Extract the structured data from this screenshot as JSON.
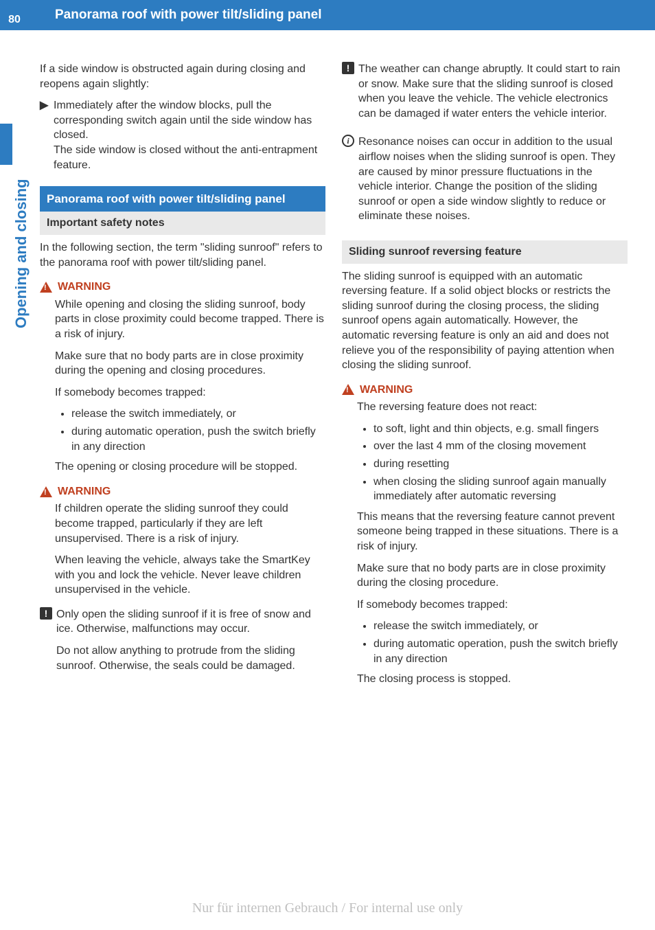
{
  "page_number": "80",
  "header_title": "Panorama roof with power tilt/sliding panel",
  "vertical_label": "Opening and closing",
  "footer": "Nur für internen Gebrauch / For internal use only",
  "colors": {
    "brand": "#2d7cc1",
    "warn": "#c04020",
    "sub_bg": "#e9e9e9",
    "text": "#333333",
    "footer": "#bfbfbf"
  },
  "left": {
    "intro1": "If a side window is obstructed again during closing and reopens again slightly:",
    "bullet1": "Immediately after the window blocks, pull the corresponding switch again until the side window has closed.",
    "bullet1b": "The side window is closed without the anti-entrapment feature.",
    "section_title": "Panorama roof with power tilt/sliding panel",
    "sub_title": "Important safety notes",
    "sub_intro": "In the following section, the term \"sliding sunroof\" refers to the panorama roof with power tilt/sliding panel.",
    "warn_label": "WARNING",
    "warn1_p1": "While opening and closing the sliding sunroof, body parts in close proximity could become trapped. There is a risk of injury.",
    "warn1_p2": "Make sure that no body parts are in close proximity during the opening and closing procedures.",
    "warn1_p3": "If somebody becomes trapped:",
    "warn1_li1": "release the switch immediately, or",
    "warn1_li2": "during automatic operation, push the switch briefly in any direction",
    "warn1_p4": "The opening or closing procedure will be stopped.",
    "warn2_p1": "If children operate the sliding sunroof they could become trapped, particularly if they are left unsupervised. There is a risk of injury.",
    "warn2_p2": "When leaving the vehicle, always take the SmartKey with you and lock the vehicle. Never leave children unsupervised in the vehicle.",
    "excl_p1": "Only open the sliding sunroof if it is free of snow and ice. Otherwise, malfunctions may occur.",
    "excl_p2": "Do not allow anything to protrude from the sliding sunroof. Otherwise, the seals could be damaged."
  },
  "right": {
    "excl_p1": "The weather can change abruptly. It could start to rain or snow. Make sure that the sliding sunroof is closed when you leave the vehicle. The vehicle electronics can be damaged if water enters the vehicle interior.",
    "info_p1": "Resonance noises can occur in addition to the usual airflow noises when the sliding sunroof is open. They are caused by minor pressure fluctuations in the vehicle interior. Change the position of the sliding sunroof or open a side window slightly to reduce or eliminate these noises.",
    "sub_title": "Sliding sunroof reversing feature",
    "sub_p1": "The sliding sunroof is equipped with an automatic reversing feature. If a solid object blocks or restricts the sliding sunroof during the closing process, the sliding sunroof opens again automatically. However, the automatic reversing feature is only an aid and does not relieve you of the responsibility of paying attention when closing the sliding sunroof.",
    "warn_label": "WARNING",
    "warn_p1": "The reversing feature does not react:",
    "warn_li1": "to soft, light and thin objects, e.g. small fingers",
    "warn_li2": "over the last 4 mm of the closing movement",
    "warn_li3": "during resetting",
    "warn_li4": "when closing the sliding sunroof again manually immediately after automatic reversing",
    "warn_p2": "This means that the reversing feature cannot prevent someone being trapped in these situations. There is a risk of injury.",
    "warn_p3": "Make sure that no body parts are in close proximity during the closing procedure.",
    "warn_p4": "If somebody becomes trapped:",
    "warn_li5": "release the switch immediately, or",
    "warn_li6": "during automatic operation, push the switch briefly in any direction",
    "warn_p5": "The closing process is stopped."
  }
}
